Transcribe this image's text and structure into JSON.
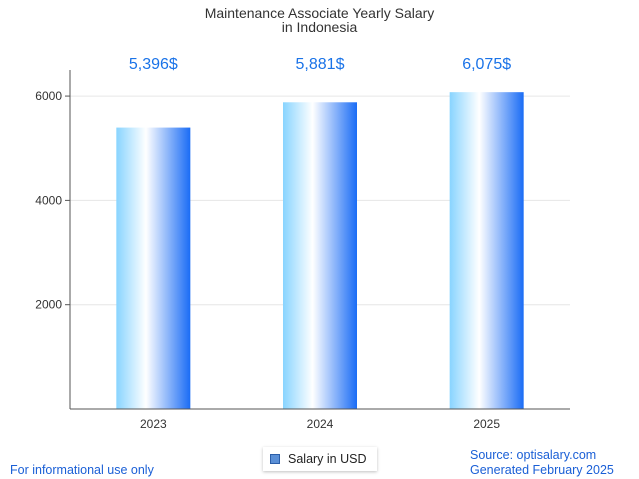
{
  "chart_data": {
    "type": "bar",
    "title_lines": [
      "Maintenance Associate Yearly Salary",
      "in Indonesia"
    ],
    "categories": [
      "2023",
      "2024",
      "2025"
    ],
    "series": [
      {
        "name": "Salary in USD",
        "values": [
          5396,
          5881,
          6075
        ]
      }
    ],
    "value_labels": [
      "5,396$",
      "5,881$",
      "6,075$"
    ],
    "y_ticks": [
      2000,
      4000,
      6000
    ],
    "ylim": [
      0,
      6500
    ],
    "grid": true,
    "legend": "bottom-center",
    "bar_gradient": [
      "#88d4ff",
      "#ffffff",
      "#1a6cf5"
    ]
  },
  "footer": {
    "disclaimer": "For informational use only",
    "source": "Source: optisalary.com",
    "generated": "Generated February 2025"
  }
}
